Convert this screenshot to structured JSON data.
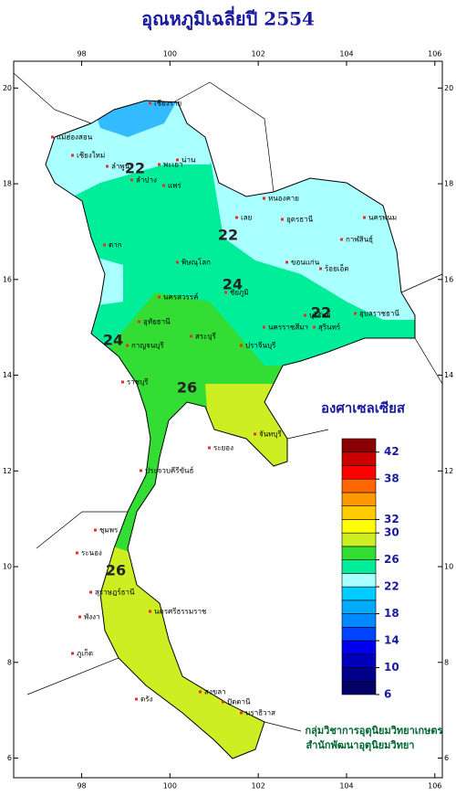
{
  "title": "อุณหภูมิเฉลี่ยปี 2554",
  "map": {
    "xlim": [
      96.46,
      106.17
    ],
    "ylim": [
      5.59,
      20.56
    ],
    "xticks": [
      98,
      100,
      102,
      104,
      106
    ],
    "yticks": [
      20,
      18,
      16,
      14,
      12,
      10,
      8,
      6
    ],
    "contour_labels": [
      22,
      22,
      24,
      22,
      24,
      26,
      26
    ],
    "places": [
      "เชียงราย",
      "แม่ฮ่องสอน",
      "เชียงใหม่",
      "ลำพูน",
      "ลำปาง",
      "พะเยา",
      "น่าน",
      "แพร่",
      "หนองคาย",
      "อุดรธานี",
      "เลย",
      "นครพนม",
      "กาฬสินธุ์",
      "ขอนแก่น",
      "ร้อยเอ็ด",
      "อุบลราชธานี",
      "สุรินทร์",
      "ชัยภูมิ",
      "นครราชสีมา",
      "บุรีรัมย์",
      "พิษณุโลก",
      "ตาก",
      "นครสวรรค์",
      "อุทัยธานี",
      "กาญจนบุรี",
      "ราชบุรี",
      "สระบุรี",
      "ปราจีนบุรี",
      "ระยอง",
      "จันทบุรี",
      "ประจวบคีรีขันธ์",
      "ชุมพร",
      "ระนอง",
      "สุราษฎร์ธานี",
      "นครศรีธรรมราช",
      "พังงา",
      "ภูเก็ต",
      "ตรัง",
      "สงขลา",
      "ปัตตานี",
      "นราธิวาส"
    ]
  },
  "legend": {
    "title": "องศาเซลเซียส",
    "lim": [
      6,
      44
    ],
    "ticks": [
      6,
      10,
      14,
      18,
      22,
      26,
      30,
      32,
      38,
      42
    ],
    "colors": [
      "#000066",
      "#00008b",
      "#0000bb",
      "#0000ee",
      "#0044ff",
      "#0088ff",
      "#00aaff",
      "#00ccff",
      "#aaffff",
      "#00ee99",
      "#33dd33",
      "#ccee22",
      "#ffff00",
      "#ffcc00",
      "#ff9900",
      "#ff6600",
      "#ff0000",
      "#cc0000",
      "#880000"
    ]
  },
  "credits": [
    "กลุ่มวิชาการอุตุนิยมวิทยาเกษตร",
    "สำนักพัฒนาอุตุนิยมวิทยา"
  ]
}
